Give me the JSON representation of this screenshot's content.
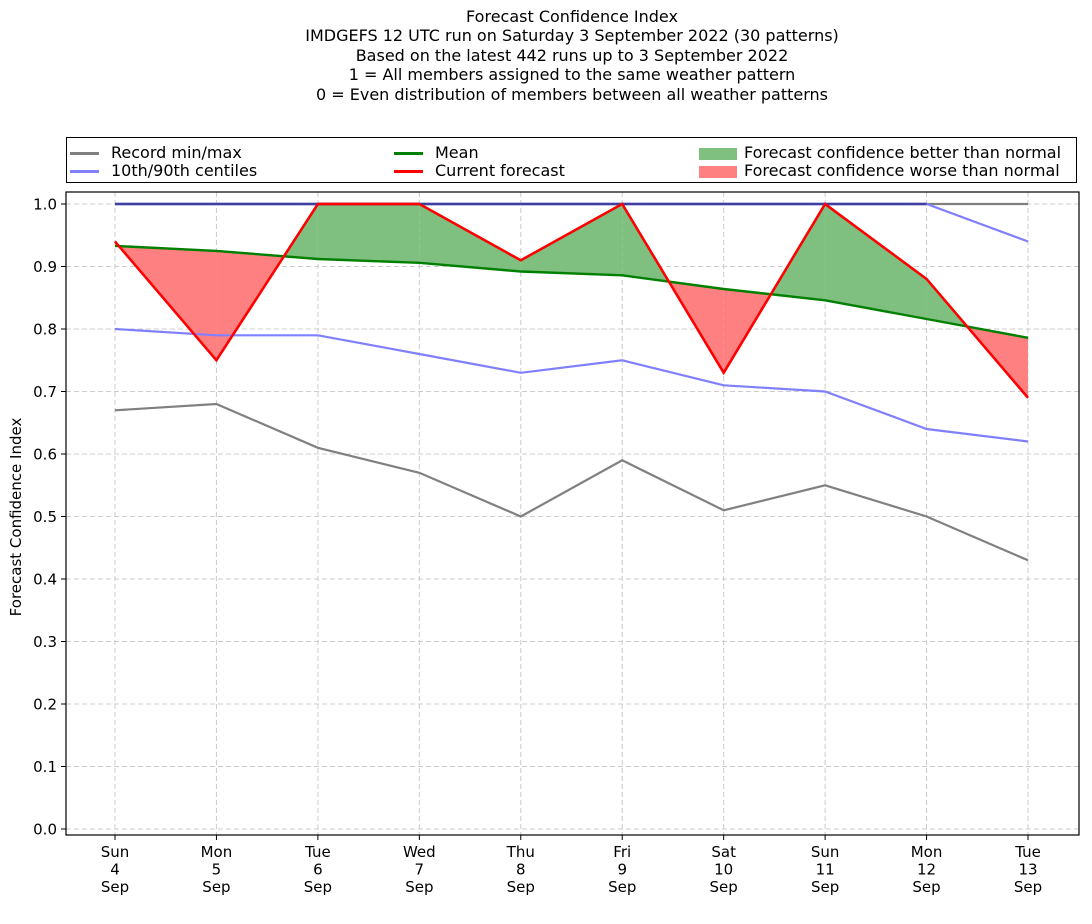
{
  "chart_data": {
    "type": "line",
    "title": "Forecast Confidence Index",
    "subtitle_lines": [
      "IMDGEFS 12 UTC run on Saturday 3 September 2022 (30 patterns)",
      "Based on the latest 442 runs up to 3 September 2022",
      "1 = All members assigned to the same weather pattern",
      "0 = Even distribution of members between all weather patterns"
    ],
    "xlabel": "",
    "ylabel": "Forecast Confidence Index",
    "ylim": [
      0.0,
      1.0
    ],
    "yticks": [
      "0.0",
      "0.1",
      "0.2",
      "0.3",
      "0.4",
      "0.5",
      "0.6",
      "0.7",
      "0.8",
      "0.9",
      "1.0"
    ],
    "grid": true,
    "legend_placement": "top (above plot)",
    "categories": [
      [
        "Sun",
        "4",
        "Sep"
      ],
      [
        "Mon",
        "5",
        "Sep"
      ],
      [
        "Tue",
        "6",
        "Sep"
      ],
      [
        "Wed",
        "7",
        "Sep"
      ],
      [
        "Thu",
        "8",
        "Sep"
      ],
      [
        "Fri",
        "9",
        "Sep"
      ],
      [
        "Sat",
        "10",
        "Sep"
      ],
      [
        "Sun",
        "11",
        "Sep"
      ],
      [
        "Mon",
        "12",
        "Sep"
      ],
      [
        "Tue",
        "13",
        "Sep"
      ]
    ],
    "series": [
      {
        "name": "Record max",
        "color": "#808080",
        "values": [
          1.0,
          1.0,
          1.0,
          1.0,
          1.0,
          1.0,
          1.0,
          1.0,
          1.0,
          1.0
        ]
      },
      {
        "name": "Record min",
        "color": "#808080",
        "values": [
          0.67,
          0.68,
          0.61,
          0.57,
          0.5,
          0.59,
          0.51,
          0.55,
          0.5,
          0.43
        ]
      },
      {
        "name": "90th centile",
        "color": "#8080ff",
        "values": [
          1.0,
          1.0,
          1.0,
          1.0,
          1.0,
          1.0,
          1.0,
          1.0,
          1.0,
          0.94
        ]
      },
      {
        "name": "10th centile",
        "color": "#8080ff",
        "values": [
          0.8,
          0.79,
          0.79,
          0.76,
          0.73,
          0.75,
          0.71,
          0.7,
          0.64,
          0.62
        ]
      },
      {
        "name": "Mean",
        "color": "#008000",
        "values": [
          0.933,
          0.925,
          0.912,
          0.906,
          0.892,
          0.886,
          0.864,
          0.846,
          0.816,
          0.786
        ]
      },
      {
        "name": "Current forecast",
        "color": "#ff0000",
        "values": [
          0.94,
          0.75,
          1.0,
          1.0,
          0.91,
          1.0,
          0.73,
          1.0,
          0.88,
          0.69
        ]
      }
    ],
    "fills": {
      "better_color": "#7fbf7f",
      "worse_color": "#ff8080"
    },
    "legend": [
      {
        "label": "Record min/max",
        "kind": "line",
        "color": "#808080"
      },
      {
        "label": "10th/90th centiles",
        "kind": "line",
        "color": "#8080ff"
      },
      {
        "label": "Mean",
        "kind": "line",
        "color": "#008000"
      },
      {
        "label": "Current forecast",
        "kind": "line",
        "color": "#ff0000"
      },
      {
        "label": "Forecast confidence better than normal",
        "kind": "patch",
        "color": "#7fbf7f"
      },
      {
        "label": "Forecast confidence worse than normal",
        "kind": "patch",
        "color": "#ff8080"
      }
    ]
  }
}
